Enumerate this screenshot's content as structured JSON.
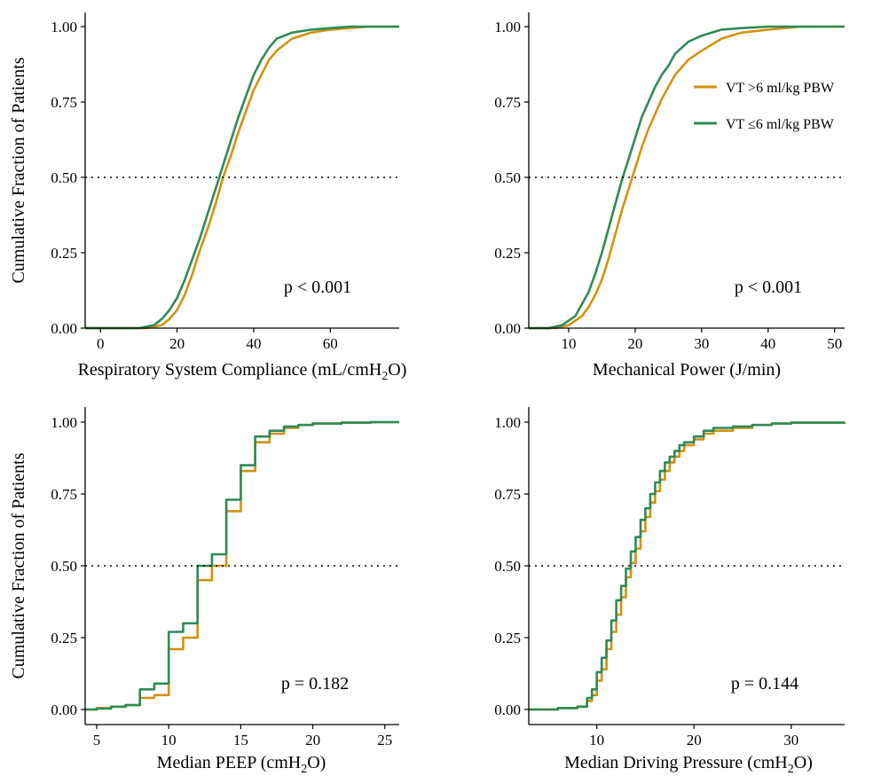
{
  "colors": {
    "vt_high": "#D4910F",
    "vt_low": "#2E8B57"
  },
  "legend": {
    "items": [
      {
        "label": "VT >6 ml/kg PBW",
        "color": "#D4910F"
      },
      {
        "label": "VT ≤6 ml/kg PBW",
        "color": "#2E8B57"
      }
    ]
  },
  "chart_data": [
    {
      "type": "line",
      "step": false,
      "ylabel": "Cumulative Fraction of Patients",
      "xlabel": "Respiratory System Compliance (mL/cmH2O)",
      "xlabel_parts": [
        "Respiratory System Compliance (mL/cmH",
        "2",
        "O)"
      ],
      "annotation": "p < 0.001",
      "xlim": [
        -4,
        78
      ],
      "ylim": [
        0,
        1
      ],
      "xticks": [
        0,
        20,
        40,
        60
      ],
      "xtick_labels": [
        "0",
        "20",
        "40",
        "60"
      ],
      "yticks": [
        0,
        0.25,
        0.5,
        0.75,
        1
      ],
      "ytick_labels": [
        "0.00",
        "0.25",
        "0.50",
        "0.75",
        "1.00"
      ],
      "reference_line_y": 0.5,
      "series": [
        {
          "name": "VT >6 ml/kg PBW",
          "color": "#D4910F",
          "x": [
            -4,
            12,
            16,
            18,
            20,
            22,
            24,
            26,
            28,
            30,
            32,
            34,
            36,
            38,
            40,
            42,
            44,
            46,
            48,
            50,
            55,
            60,
            65,
            70,
            78
          ],
          "y": [
            0,
            0,
            0.01,
            0.03,
            0.06,
            0.11,
            0.18,
            0.26,
            0.33,
            0.41,
            0.5,
            0.57,
            0.65,
            0.72,
            0.79,
            0.84,
            0.89,
            0.92,
            0.94,
            0.96,
            0.98,
            0.99,
            0.995,
            1,
            1
          ]
        },
        {
          "name": "VT ≤6 ml/kg PBW",
          "color": "#2E8B57",
          "x": [
            -4,
            10,
            14,
            16,
            18,
            20,
            22,
            24,
            26,
            28,
            30,
            32,
            34,
            36,
            38,
            40,
            42,
            44,
            46,
            48,
            50,
            55,
            60,
            65,
            78
          ],
          "y": [
            0,
            0,
            0.01,
            0.03,
            0.06,
            0.1,
            0.16,
            0.23,
            0.3,
            0.38,
            0.46,
            0.54,
            0.62,
            0.7,
            0.77,
            0.84,
            0.89,
            0.93,
            0.96,
            0.97,
            0.98,
            0.99,
            0.995,
            1,
            1
          ]
        }
      ]
    },
    {
      "type": "line",
      "step": false,
      "ylabel": "",
      "xlabel": "Mechanical Power (J/min)",
      "xlabel_parts": [
        "Mechanical Power (J/min)",
        "",
        ""
      ],
      "annotation": "p < 0.001",
      "xlim": [
        4,
        51.5
      ],
      "ylim": [
        0,
        1
      ],
      "xticks": [
        10,
        20,
        30,
        40,
        50
      ],
      "xtick_labels": [
        "10",
        "20",
        "30",
        "40",
        "50"
      ],
      "yticks": [
        0,
        0.25,
        0.5,
        0.75,
        1
      ],
      "ytick_labels": [
        "0.00",
        "0.25",
        "0.50",
        "0.75",
        "1.00"
      ],
      "reference_line_y": 0.5,
      "series": [
        {
          "name": "VT >6 ml/kg PBW",
          "color": "#D4910F",
          "x": [
            4,
            8,
            10,
            12,
            13,
            14,
            15,
            16,
            17,
            18,
            19,
            20,
            21,
            22,
            23,
            24,
            25,
            26,
            28,
            30,
            33,
            36,
            40,
            45,
            51.5
          ],
          "y": [
            0,
            0,
            0.01,
            0.04,
            0.07,
            0.11,
            0.16,
            0.23,
            0.31,
            0.39,
            0.46,
            0.53,
            0.6,
            0.66,
            0.71,
            0.76,
            0.8,
            0.84,
            0.89,
            0.92,
            0.96,
            0.98,
            0.99,
            1,
            1
          ]
        },
        {
          "name": "VT ≤6 ml/kg PBW",
          "color": "#2E8B57",
          "x": [
            4,
            7,
            9,
            11,
            12,
            13,
            14,
            15,
            16,
            17,
            18,
            19,
            20,
            21,
            22,
            23,
            24,
            25,
            26,
            28,
            30,
            33,
            36,
            40,
            51.5
          ],
          "y": [
            0,
            0,
            0.01,
            0.04,
            0.08,
            0.12,
            0.18,
            0.25,
            0.33,
            0.41,
            0.49,
            0.56,
            0.63,
            0.7,
            0.75,
            0.8,
            0.84,
            0.87,
            0.91,
            0.95,
            0.97,
            0.99,
            0.995,
            1,
            1
          ]
        }
      ]
    },
    {
      "type": "line",
      "step": true,
      "ylabel": "Cumulative Fraction of Patients",
      "xlabel": "Median PEEP (cmH2O)",
      "xlabel_parts": [
        "Median PEEP (cmH",
        "2",
        "O)"
      ],
      "annotation": "p = 0.182",
      "xlim": [
        4.2,
        26
      ],
      "ylim": [
        0,
        1
      ],
      "xticks": [
        5,
        10,
        15,
        20,
        25
      ],
      "xtick_labels": [
        "5",
        "10",
        "15",
        "20",
        "25"
      ],
      "yticks": [
        0,
        0.25,
        0.5,
        0.75,
        1
      ],
      "ytick_labels": [
        "0.00",
        "0.25",
        "0.50",
        "0.75",
        "1.00"
      ],
      "reference_line_y": 0.5,
      "series": [
        {
          "name": "VT >6 ml/kg PBW",
          "color": "#D4910F",
          "x": [
            4.2,
            5,
            6,
            7,
            8,
            9,
            10,
            11,
            12,
            13,
            14,
            15,
            16,
            17,
            18,
            19,
            20,
            22,
            24,
            26
          ],
          "y": [
            0,
            0.005,
            0.01,
            0.015,
            0.04,
            0.05,
            0.21,
            0.25,
            0.45,
            0.5,
            0.69,
            0.83,
            0.93,
            0.96,
            0.98,
            0.99,
            0.995,
            0.998,
            1,
            1
          ]
        },
        {
          "name": "VT ≤6 ml/kg PBW",
          "color": "#2E8B57",
          "x": [
            4.2,
            5,
            6,
            7,
            8,
            9,
            10,
            11,
            12,
            13,
            14,
            15,
            16,
            17,
            18,
            19,
            20,
            22,
            24,
            26
          ],
          "y": [
            0,
            0.003,
            0.01,
            0.015,
            0.07,
            0.09,
            0.27,
            0.3,
            0.5,
            0.54,
            0.73,
            0.85,
            0.95,
            0.97,
            0.985,
            0.99,
            0.995,
            0.998,
            1,
            1
          ]
        }
      ]
    },
    {
      "type": "line",
      "step": true,
      "ylabel": "",
      "xlabel": "Median Driving Pressure (cmH2O)",
      "xlabel_parts": [
        "Median Driving Pressure (cmH",
        "2",
        "O)"
      ],
      "annotation": "p = 0.144",
      "xlim": [
        3,
        35.5
      ],
      "ylim": [
        0,
        1
      ],
      "xticks": [
        10,
        20,
        30
      ],
      "xtick_labels": [
        "10",
        "20",
        "30"
      ],
      "yticks": [
        0,
        0.25,
        0.5,
        0.75,
        1
      ],
      "ytick_labels": [
        "0.00",
        "0.25",
        "0.50",
        "0.75",
        "1.00"
      ],
      "reference_line_y": 0.5,
      "series": [
        {
          "name": "VT >6 ml/kg PBW",
          "color": "#D4910F",
          "x": [
            3,
            6,
            8,
            9,
            9.5,
            10,
            10.5,
            11,
            11.5,
            12,
            12.5,
            13,
            13.5,
            14,
            14.5,
            15,
            15.5,
            16,
            16.5,
            17,
            17.5,
            18,
            18.5,
            19,
            20,
            21,
            22,
            24,
            26,
            28,
            30,
            35.5
          ],
          "y": [
            0,
            0.005,
            0.01,
            0.03,
            0.05,
            0.1,
            0.14,
            0.21,
            0.27,
            0.33,
            0.39,
            0.46,
            0.51,
            0.56,
            0.62,
            0.67,
            0.72,
            0.76,
            0.8,
            0.83,
            0.86,
            0.88,
            0.9,
            0.92,
            0.94,
            0.96,
            0.97,
            0.98,
            0.99,
            0.995,
            0.998,
            1
          ]
        },
        {
          "name": "VT ≤6 ml/kg PBW",
          "color": "#2E8B57",
          "x": [
            3,
            6,
            8,
            9,
            9.5,
            10,
            10.5,
            11,
            11.5,
            12,
            12.5,
            13,
            13.5,
            14,
            14.5,
            15,
            15.5,
            16,
            16.5,
            17,
            17.5,
            18,
            18.5,
            19,
            20,
            21,
            22,
            24,
            26,
            28,
            30,
            35.5
          ],
          "y": [
            0,
            0.005,
            0.01,
            0.04,
            0.07,
            0.13,
            0.18,
            0.24,
            0.31,
            0.38,
            0.43,
            0.49,
            0.55,
            0.6,
            0.66,
            0.7,
            0.75,
            0.79,
            0.83,
            0.86,
            0.88,
            0.9,
            0.92,
            0.93,
            0.95,
            0.97,
            0.98,
            0.985,
            0.99,
            0.995,
            0.998,
            1
          ]
        }
      ]
    }
  ]
}
